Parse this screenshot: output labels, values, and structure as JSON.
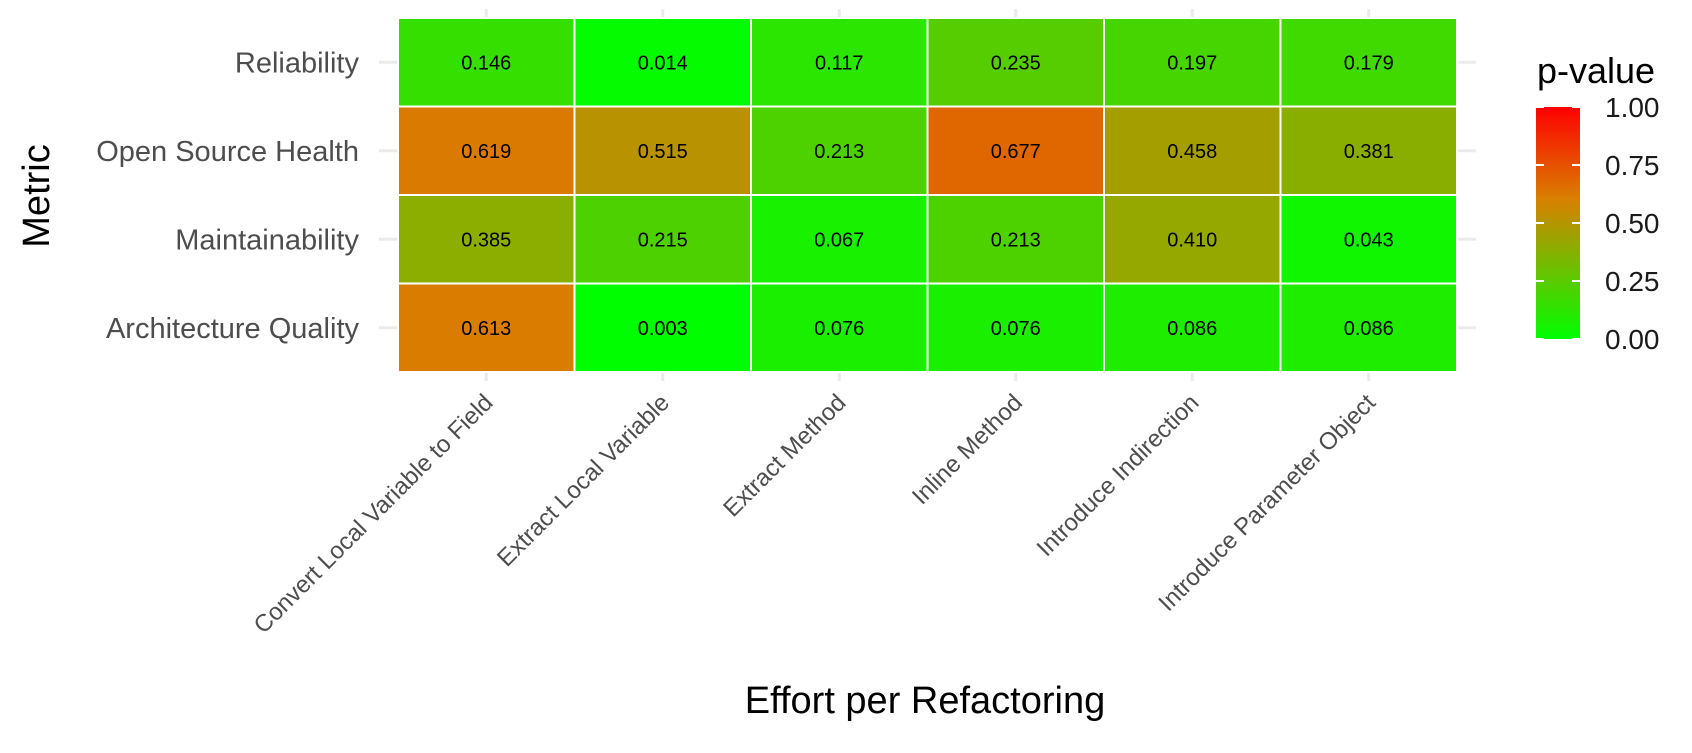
{
  "chart_data": {
    "type": "heatmap",
    "xlabel": "Effort per Refactoring",
    "ylabel": "Metric",
    "x_categories": [
      "Convert Local Variable to Field",
      "Extract Local Variable",
      "Extract Method",
      "Inline Method",
      "Introduce Indirection",
      "Introduce Parameter Object"
    ],
    "y_categories": [
      "Reliability",
      "Open Source Health",
      "Maintainability",
      "Architecture Quality"
    ],
    "values": [
      [
        0.146,
        0.014,
        0.117,
        0.235,
        0.197,
        0.179
      ],
      [
        0.619,
        0.515,
        0.213,
        0.677,
        0.458,
        0.381
      ],
      [
        0.385,
        0.215,
        0.067,
        0.213,
        0.41,
        0.043
      ],
      [
        0.613,
        0.003,
        0.076,
        0.076,
        0.086,
        0.086
      ]
    ],
    "value_labels": [
      [
        "0.146",
        "0.014",
        "0.117",
        "0.235",
        "0.197",
        "0.179"
      ],
      [
        "0.619",
        "0.515",
        "0.213",
        "0.677",
        "0.458",
        "0.381"
      ],
      [
        "0.385",
        "0.215",
        "0.067",
        "0.213",
        "0.410",
        "0.043"
      ],
      [
        "0.613",
        "0.003",
        "0.076",
        "0.076",
        "0.086",
        "0.086"
      ]
    ],
    "legend": {
      "title": "p-value",
      "range": [
        0,
        1
      ],
      "ticks": [
        1.0,
        0.75,
        0.5,
        0.25,
        0.0
      ],
      "tick_labels": [
        "1.00",
        "0.75",
        "0.50",
        "0.25",
        "0.00"
      ],
      "placement": "right"
    },
    "color_scale": {
      "low": "#00ff00",
      "mid": "#d88000",
      "high": "#ff0000"
    },
    "grid": true
  }
}
